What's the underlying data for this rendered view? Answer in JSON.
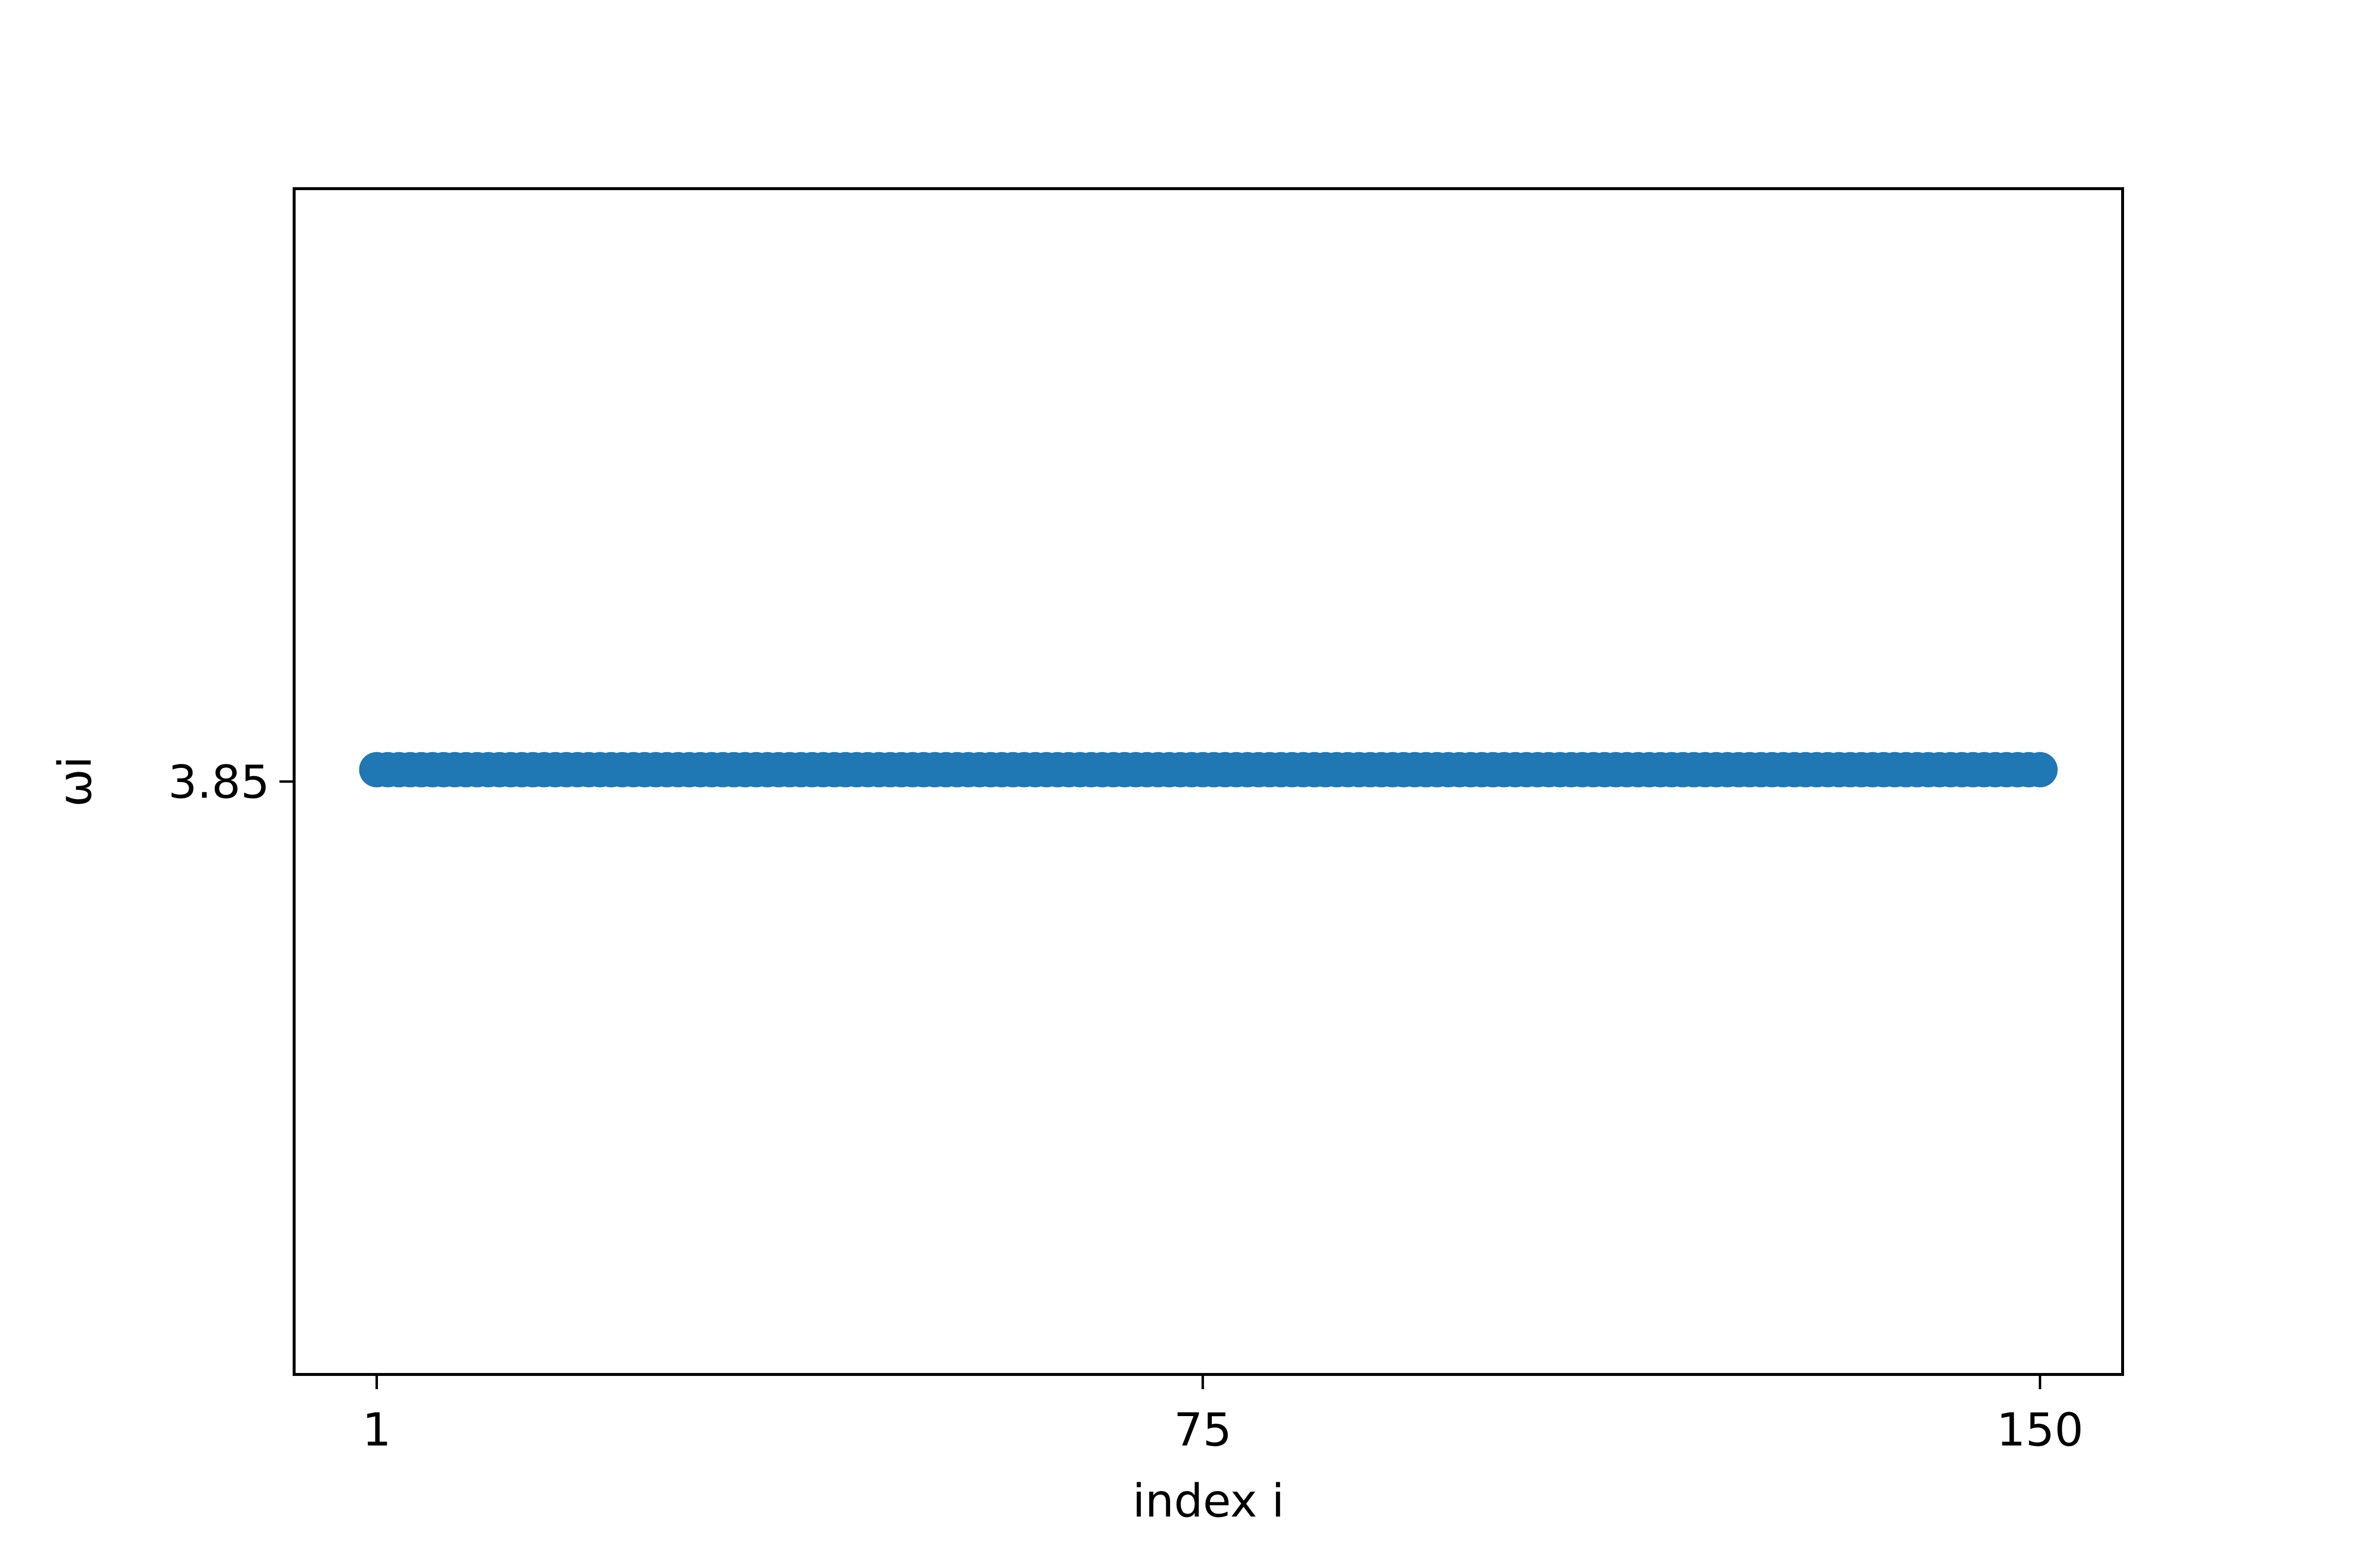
{
  "chart_data": {
    "type": "scatter",
    "title": "",
    "xlabel": "index i",
    "ylabel": "ωi",
    "x_ticks": [
      1,
      75,
      150
    ],
    "y_ticks": [
      3.85
    ],
    "xlim": [
      -6.4,
      157.4
    ],
    "ylim": [
      3.8,
      3.9
    ],
    "x_start": 1,
    "x_end": 150,
    "y_value": 3.851,
    "grid": false,
    "legend": "none",
    "color": "#1f77b4"
  }
}
